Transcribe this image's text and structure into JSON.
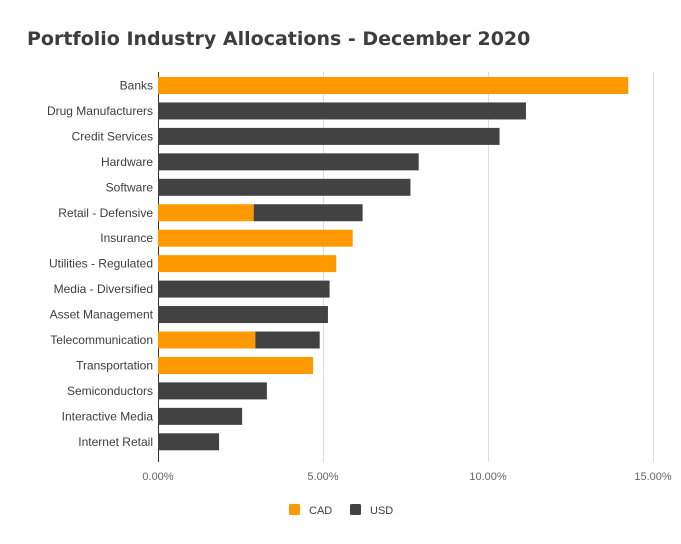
{
  "chart_data": {
    "type": "bar",
    "orientation": "horizontal",
    "stacked": true,
    "title": "Portfolio Industry Allocations - December 2020",
    "categories": [
      "Banks",
      "Drug Manufacturers",
      "Credit Services",
      "Hardware",
      "Software",
      "Retail - Defensive",
      "Insurance",
      "Utilities - Regulated",
      "Media - Diversified",
      "Asset Management",
      "Telecommunication",
      "Transportation",
      "Semiconductors",
      "Interactive Media",
      "Internet Retail"
    ],
    "series": [
      {
        "name": "CAD",
        "color": "#ff9900",
        "values": [
          14.25,
          0,
          0,
          0,
          0,
          2.9,
          5.9,
          5.4,
          0,
          0,
          2.95,
          4.7,
          0,
          0,
          0
        ]
      },
      {
        "name": "USD",
        "color": "#424242",
        "values": [
          0,
          11.15,
          10.35,
          7.9,
          7.65,
          3.3,
          0,
          0,
          5.2,
          5.15,
          1.95,
          0,
          3.3,
          2.55,
          1.85
        ]
      }
    ],
    "xlim": [
      0,
      15
    ],
    "xticks": [
      0,
      5,
      10,
      15
    ],
    "xtick_labels": [
      "0.00%",
      "5.00%",
      "10.00%",
      "15.00%"
    ],
    "xlabel": "",
    "ylabel": "",
    "grid": "vertical",
    "legend": "bottom"
  }
}
